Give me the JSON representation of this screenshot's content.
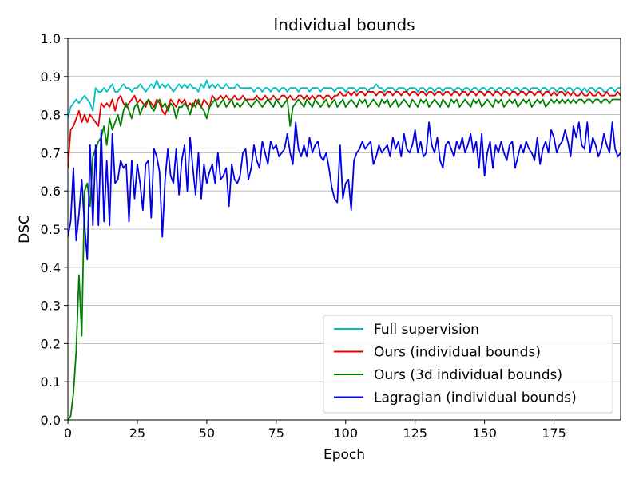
{
  "chart_data": {
    "type": "line",
    "title": "Individual bounds",
    "xlabel": "Epoch",
    "ylabel": "DSC",
    "xlim": [
      0,
      199
    ],
    "ylim": [
      0.0,
      1.0
    ],
    "x_ticks": [
      0,
      25,
      50,
      75,
      100,
      125,
      150,
      175
    ],
    "y_ticks": [
      0.0,
      0.1,
      0.2,
      0.3,
      0.4,
      0.5,
      0.6,
      0.7,
      0.8,
      0.9,
      1.0
    ],
    "grid": "horizontal",
    "legend_position": "lower-right",
    "series": [
      {
        "name": "Full supervision",
        "color": "#00bfbf",
        "values": [
          0.79,
          0.82,
          0.83,
          0.84,
          0.83,
          0.84,
          0.85,
          0.84,
          0.83,
          0.81,
          0.87,
          0.86,
          0.86,
          0.87,
          0.86,
          0.87,
          0.88,
          0.86,
          0.86,
          0.87,
          0.88,
          0.87,
          0.87,
          0.86,
          0.87,
          0.87,
          0.88,
          0.87,
          0.86,
          0.87,
          0.88,
          0.87,
          0.89,
          0.87,
          0.88,
          0.87,
          0.88,
          0.87,
          0.86,
          0.87,
          0.88,
          0.87,
          0.88,
          0.87,
          0.88,
          0.87,
          0.87,
          0.86,
          0.88,
          0.87,
          0.89,
          0.87,
          0.88,
          0.87,
          0.88,
          0.87,
          0.87,
          0.88,
          0.87,
          0.87,
          0.87,
          0.88,
          0.87,
          0.87,
          0.87,
          0.87,
          0.87,
          0.86,
          0.87,
          0.87,
          0.86,
          0.87,
          0.87,
          0.86,
          0.87,
          0.87,
          0.86,
          0.87,
          0.87,
          0.86,
          0.87,
          0.87,
          0.87,
          0.86,
          0.87,
          0.87,
          0.87,
          0.86,
          0.87,
          0.87,
          0.87,
          0.86,
          0.87,
          0.87,
          0.87,
          0.87,
          0.86,
          0.87,
          0.87,
          0.87,
          0.86,
          0.87,
          0.87,
          0.87,
          0.86,
          0.87,
          0.87,
          0.87,
          0.86,
          0.87,
          0.87,
          0.88,
          0.87,
          0.87,
          0.86,
          0.87,
          0.87,
          0.87,
          0.86,
          0.87,
          0.87,
          0.87,
          0.86,
          0.87,
          0.87,
          0.87,
          0.86,
          0.87,
          0.87,
          0.86,
          0.87,
          0.87,
          0.86,
          0.87,
          0.87,
          0.86,
          0.87,
          0.87,
          0.87,
          0.86,
          0.87,
          0.87,
          0.86,
          0.87,
          0.87,
          0.86,
          0.87,
          0.87,
          0.86,
          0.87,
          0.87,
          0.86,
          0.87,
          0.87,
          0.86,
          0.87,
          0.87,
          0.86,
          0.87,
          0.87,
          0.86,
          0.87,
          0.87,
          0.86,
          0.87,
          0.87,
          0.86,
          0.87,
          0.87,
          0.87,
          0.86,
          0.87,
          0.87,
          0.86,
          0.87,
          0.87,
          0.86,
          0.87,
          0.87,
          0.86,
          0.87,
          0.87,
          0.86,
          0.87,
          0.87,
          0.86,
          0.87,
          0.86,
          0.87,
          0.87,
          0.86,
          0.87,
          0.87,
          0.86,
          0.86,
          0.87,
          0.87,
          0.86,
          0.87,
          0.87,
          0.86,
          0.87
        ]
      },
      {
        "name": "Ours (individual bounds)",
        "color": "#e60000",
        "values": [
          0.66,
          0.76,
          0.77,
          0.79,
          0.81,
          0.78,
          0.8,
          0.78,
          0.8,
          0.79,
          0.78,
          0.77,
          0.83,
          0.82,
          0.83,
          0.82,
          0.84,
          0.81,
          0.84,
          0.85,
          0.83,
          0.82,
          0.83,
          0.84,
          0.85,
          0.83,
          0.84,
          0.83,
          0.82,
          0.84,
          0.83,
          0.82,
          0.84,
          0.83,
          0.81,
          0.8,
          0.82,
          0.84,
          0.83,
          0.82,
          0.84,
          0.83,
          0.84,
          0.82,
          0.83,
          0.82,
          0.84,
          0.83,
          0.82,
          0.84,
          0.83,
          0.82,
          0.85,
          0.84,
          0.84,
          0.85,
          0.84,
          0.85,
          0.84,
          0.84,
          0.85,
          0.84,
          0.84,
          0.85,
          0.84,
          0.84,
          0.84,
          0.84,
          0.85,
          0.84,
          0.84,
          0.85,
          0.84,
          0.84,
          0.85,
          0.84,
          0.84,
          0.85,
          0.85,
          0.84,
          0.85,
          0.84,
          0.84,
          0.85,
          0.85,
          0.84,
          0.85,
          0.84,
          0.85,
          0.84,
          0.85,
          0.85,
          0.84,
          0.85,
          0.85,
          0.84,
          0.85,
          0.85,
          0.86,
          0.85,
          0.85,
          0.86,
          0.85,
          0.86,
          0.85,
          0.86,
          0.86,
          0.85,
          0.86,
          0.86,
          0.86,
          0.85,
          0.86,
          0.86,
          0.85,
          0.86,
          0.86,
          0.85,
          0.86,
          0.86,
          0.85,
          0.86,
          0.86,
          0.85,
          0.86,
          0.86,
          0.85,
          0.86,
          0.86,
          0.85,
          0.86,
          0.86,
          0.85,
          0.86,
          0.86,
          0.85,
          0.86,
          0.86,
          0.85,
          0.86,
          0.86,
          0.85,
          0.86,
          0.86,
          0.85,
          0.86,
          0.86,
          0.85,
          0.86,
          0.86,
          0.85,
          0.86,
          0.86,
          0.85,
          0.86,
          0.86,
          0.85,
          0.86,
          0.86,
          0.85,
          0.86,
          0.86,
          0.85,
          0.86,
          0.86,
          0.85,
          0.86,
          0.86,
          0.85,
          0.86,
          0.86,
          0.85,
          0.86,
          0.86,
          0.85,
          0.86,
          0.85,
          0.86,
          0.86,
          0.85,
          0.86,
          0.85,
          0.86,
          0.85,
          0.85,
          0.86,
          0.85,
          0.85,
          0.86,
          0.85,
          0.85,
          0.86,
          0.85,
          0.85,
          0.86,
          0.85,
          0.85,
          0.85,
          0.86,
          0.85,
          0.85,
          0.85
        ]
      },
      {
        "name": "Ours (3d individual bounds)",
        "color": "#008000",
        "values": [
          0.0,
          0.01,
          0.07,
          0.18,
          0.38,
          0.22,
          0.6,
          0.62,
          0.56,
          0.69,
          0.71,
          0.73,
          0.74,
          0.77,
          0.72,
          0.79,
          0.76,
          0.78,
          0.8,
          0.77,
          0.81,
          0.83,
          0.81,
          0.79,
          0.82,
          0.83,
          0.8,
          0.82,
          0.83,
          0.84,
          0.82,
          0.81,
          0.83,
          0.84,
          0.82,
          0.83,
          0.81,
          0.83,
          0.82,
          0.79,
          0.82,
          0.82,
          0.83,
          0.82,
          0.8,
          0.83,
          0.82,
          0.84,
          0.82,
          0.81,
          0.79,
          0.82,
          0.83,
          0.84,
          0.82,
          0.83,
          0.84,
          0.82,
          0.83,
          0.84,
          0.82,
          0.83,
          0.82,
          0.83,
          0.84,
          0.83,
          0.82,
          0.83,
          0.84,
          0.83,
          0.82,
          0.83,
          0.84,
          0.83,
          0.82,
          0.84,
          0.83,
          0.82,
          0.83,
          0.84,
          0.77,
          0.82,
          0.83,
          0.84,
          0.83,
          0.82,
          0.84,
          0.83,
          0.82,
          0.84,
          0.83,
          0.82,
          0.83,
          0.84,
          0.82,
          0.83,
          0.84,
          0.82,
          0.83,
          0.84,
          0.82,
          0.83,
          0.84,
          0.83,
          0.82,
          0.84,
          0.83,
          0.84,
          0.82,
          0.83,
          0.84,
          0.83,
          0.82,
          0.84,
          0.83,
          0.84,
          0.82,
          0.83,
          0.84,
          0.82,
          0.83,
          0.84,
          0.83,
          0.82,
          0.84,
          0.83,
          0.82,
          0.84,
          0.83,
          0.84,
          0.82,
          0.83,
          0.84,
          0.83,
          0.82,
          0.84,
          0.83,
          0.82,
          0.84,
          0.83,
          0.84,
          0.82,
          0.83,
          0.84,
          0.83,
          0.82,
          0.84,
          0.83,
          0.84,
          0.82,
          0.83,
          0.84,
          0.83,
          0.82,
          0.84,
          0.83,
          0.84,
          0.82,
          0.83,
          0.84,
          0.83,
          0.84,
          0.82,
          0.83,
          0.84,
          0.83,
          0.84,
          0.82,
          0.83,
          0.84,
          0.83,
          0.84,
          0.82,
          0.83,
          0.84,
          0.83,
          0.84,
          0.83,
          0.84,
          0.83,
          0.84,
          0.83,
          0.84,
          0.83,
          0.84,
          0.84,
          0.83,
          0.84,
          0.84,
          0.83,
          0.84,
          0.84,
          0.83,
          0.84,
          0.84,
          0.83,
          0.84,
          0.84,
          0.84,
          0.84
        ]
      },
      {
        "name": "Lagragian (individual bounds)",
        "color": "#0000e6",
        "values": [
          0.48,
          0.52,
          0.66,
          0.47,
          0.54,
          0.63,
          0.51,
          0.42,
          0.72,
          0.51,
          0.72,
          0.51,
          0.76,
          0.52,
          0.68,
          0.51,
          0.75,
          0.62,
          0.63,
          0.68,
          0.66,
          0.67,
          0.52,
          0.68,
          0.58,
          0.67,
          0.62,
          0.55,
          0.67,
          0.68,
          0.53,
          0.71,
          0.69,
          0.65,
          0.48,
          0.63,
          0.71,
          0.64,
          0.62,
          0.71,
          0.59,
          0.68,
          0.72,
          0.6,
          0.74,
          0.66,
          0.59,
          0.7,
          0.58,
          0.67,
          0.62,
          0.65,
          0.67,
          0.62,
          0.7,
          0.63,
          0.64,
          0.66,
          0.56,
          0.67,
          0.63,
          0.62,
          0.64,
          0.7,
          0.71,
          0.63,
          0.66,
          0.72,
          0.68,
          0.66,
          0.73,
          0.7,
          0.67,
          0.73,
          0.71,
          0.72,
          0.69,
          0.7,
          0.71,
          0.75,
          0.7,
          0.67,
          0.78,
          0.71,
          0.69,
          0.72,
          0.69,
          0.74,
          0.7,
          0.72,
          0.73,
          0.69,
          0.68,
          0.7,
          0.66,
          0.61,
          0.58,
          0.57,
          0.72,
          0.58,
          0.62,
          0.63,
          0.55,
          0.68,
          0.7,
          0.71,
          0.73,
          0.71,
          0.72,
          0.73,
          0.67,
          0.69,
          0.72,
          0.7,
          0.71,
          0.72,
          0.69,
          0.74,
          0.71,
          0.73,
          0.69,
          0.75,
          0.71,
          0.7,
          0.72,
          0.76,
          0.7,
          0.73,
          0.69,
          0.7,
          0.78,
          0.72,
          0.7,
          0.74,
          0.68,
          0.66,
          0.72,
          0.73,
          0.71,
          0.69,
          0.73,
          0.71,
          0.74,
          0.7,
          0.72,
          0.75,
          0.7,
          0.73,
          0.66,
          0.75,
          0.64,
          0.7,
          0.73,
          0.66,
          0.72,
          0.7,
          0.73,
          0.7,
          0.68,
          0.72,
          0.73,
          0.66,
          0.69,
          0.72,
          0.7,
          0.73,
          0.71,
          0.7,
          0.68,
          0.74,
          0.67,
          0.71,
          0.73,
          0.7,
          0.76,
          0.74,
          0.7,
          0.72,
          0.73,
          0.76,
          0.73,
          0.69,
          0.77,
          0.74,
          0.78,
          0.72,
          0.71,
          0.78,
          0.7,
          0.74,
          0.72,
          0.69,
          0.71,
          0.75,
          0.72,
          0.7,
          0.78,
          0.71,
          0.69,
          0.7,
          0.69,
          0.71,
          0.7,
          0.67
        ]
      }
    ]
  }
}
